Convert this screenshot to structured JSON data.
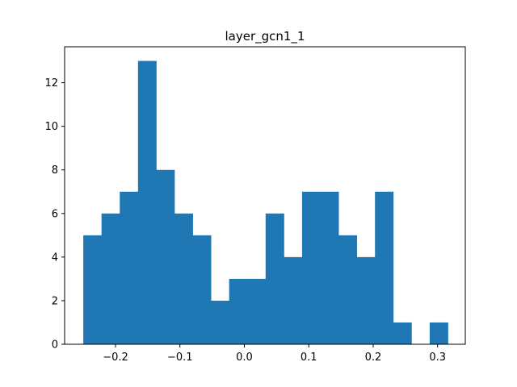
{
  "chart_data": {
    "type": "bar",
    "title": "layer_gcn1_1",
    "xlabel": "",
    "ylabel": "",
    "color": "#1f77b4",
    "bin_start": -0.25,
    "bin_width": 0.0283,
    "counts": [
      5,
      6,
      7,
      13,
      8,
      6,
      5,
      2,
      3,
      3,
      6,
      4,
      7,
      7,
      5,
      4,
      7,
      1,
      0,
      1
    ],
    "xlim": [
      -0.279,
      0.343
    ],
    "ylim": [
      0,
      13.65
    ],
    "x_ticks": [
      -0.2,
      -0.1,
      0.0,
      0.1,
      0.2,
      0.3
    ],
    "x_tick_labels": [
      "−0.2",
      "−0.1",
      "0.0",
      "0.1",
      "0.2",
      "0.3"
    ],
    "y_ticks": [
      0,
      2,
      4,
      6,
      8,
      10,
      12
    ],
    "y_tick_labels": [
      "0",
      "2",
      "4",
      "6",
      "8",
      "10",
      "12"
    ],
    "grid": false,
    "legend": "none"
  }
}
